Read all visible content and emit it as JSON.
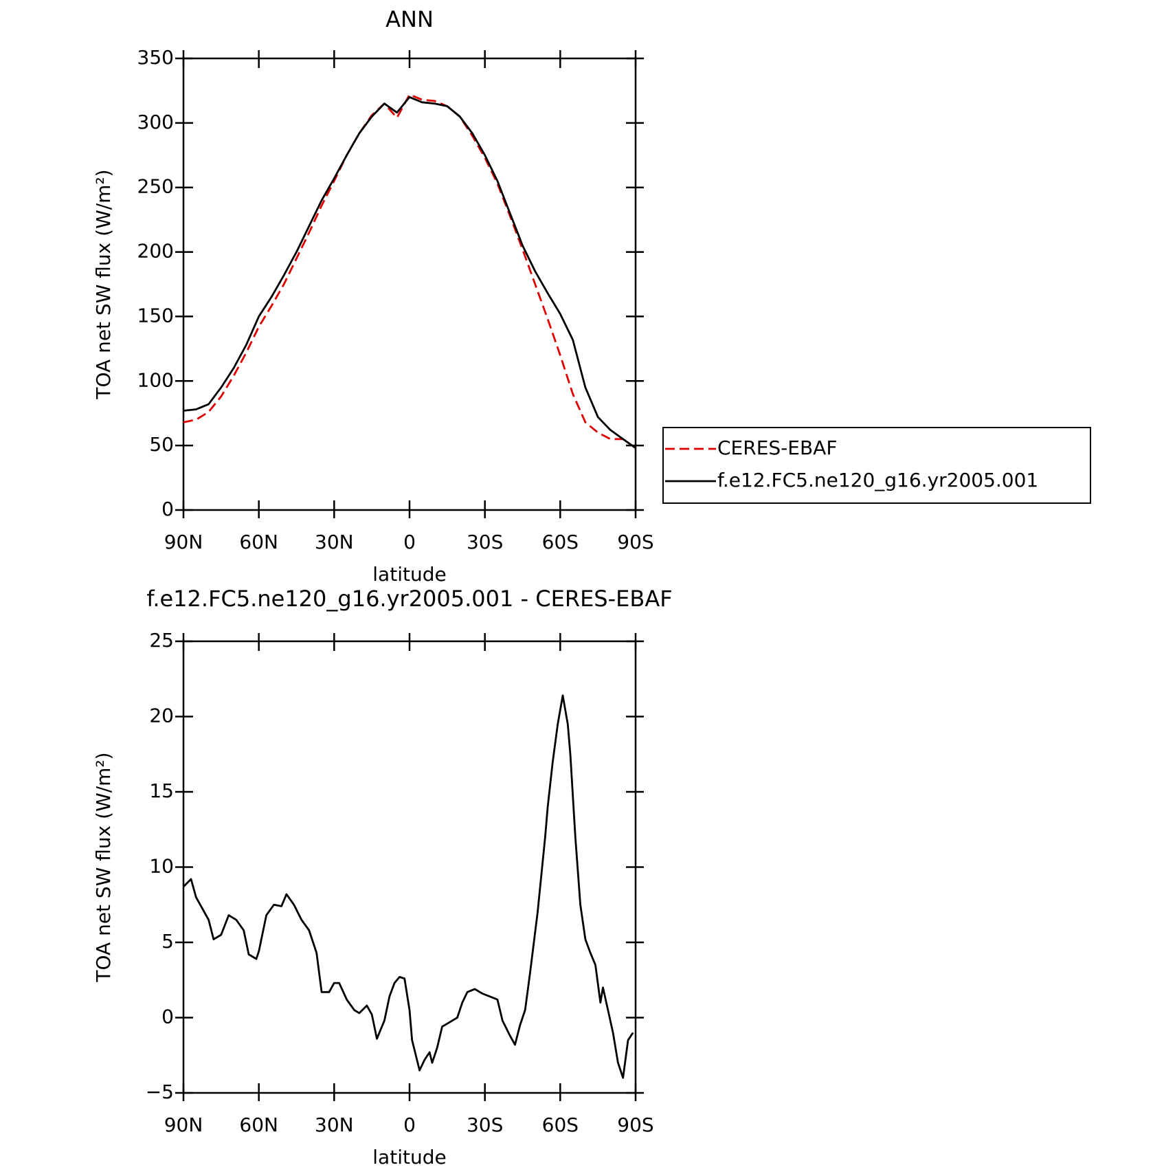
{
  "chart_data": [
    {
      "type": "line",
      "title": "ANN",
      "xlabel": "latitude",
      "ylabel": "TOA net SW flux (W/m²)",
      "x": [
        90,
        85,
        80,
        75,
        70,
        65,
        60,
        55,
        50,
        45,
        40,
        35,
        30,
        25,
        20,
        15,
        10,
        5,
        0,
        -5,
        -10,
        -15,
        -20,
        -25,
        -30,
        -35,
        -40,
        -45,
        -50,
        -55,
        -60,
        -65,
        -70,
        -75,
        -80,
        -85,
        -90
      ],
      "series": [
        {
          "name": "CERES-EBAF",
          "color": "#e00000",
          "dash": true,
          "values": [
            68,
            70,
            76,
            88,
            104,
            122,
            142,
            158,
            175,
            195,
            215,
            236,
            255,
            275,
            292,
            306,
            315,
            304,
            322,
            318,
            317,
            313,
            305,
            290,
            273,
            253,
            228,
            202,
            175,
            148,
            120,
            90,
            68,
            60,
            55,
            55,
            48
          ]
        },
        {
          "name": "f.e12.FC5.ne120_g16.yr2005.001",
          "color": "#000000",
          "dash": false,
          "values": [
            77,
            78,
            82,
            95,
            110,
            128,
            150,
            165,
            182,
            200,
            220,
            240,
            257,
            275,
            292,
            305,
            315,
            308,
            320,
            316,
            315,
            313,
            305,
            292,
            275,
            255,
            230,
            205,
            185,
            168,
            152,
            132,
            95,
            72,
            62,
            55,
            48
          ]
        }
      ],
      "xlim": [
        90,
        -90
      ],
      "xticks": [
        {
          "value": 90,
          "label": "90N"
        },
        {
          "value": 60,
          "label": "60N"
        },
        {
          "value": 30,
          "label": "30N"
        },
        0,
        {
          "value": -30,
          "label": "30S"
        },
        {
          "value": -60,
          "label": "60S"
        },
        {
          "value": -90,
          "label": "90S"
        }
      ],
      "ylim": [
        0,
        350
      ],
      "yticks": [
        0,
        50,
        100,
        150,
        200,
        250,
        300,
        350
      ],
      "legend": "right"
    },
    {
      "type": "line",
      "title": "f.e12.FC5.ne120_g16.yr2005.001 - CERES-EBAF",
      "xlabel": "latitude",
      "ylabel": "TOA net SW flux (W/m²)",
      "x": [
        90,
        87,
        85,
        80,
        78,
        75,
        72,
        69,
        66,
        64,
        61,
        60,
        57,
        54,
        51,
        49,
        46,
        43,
        40,
        37,
        35,
        32,
        30,
        28,
        25,
        22,
        20,
        17,
        15,
        13,
        10,
        8,
        6,
        4,
        2,
        0,
        -1,
        -4,
        -6,
        -8,
        -9,
        -11,
        -13,
        -15,
        -17,
        -19,
        -21,
        -23,
        -26,
        -29,
        -32,
        -35,
        -37,
        -40,
        -42,
        -44,
        -46,
        -48,
        -51,
        -54,
        -55,
        -57,
        -59,
        -61,
        -63,
        -64,
        -66,
        -68,
        -70,
        -72,
        -74,
        -76,
        -77,
        -79,
        -81,
        -83,
        -85,
        -87,
        -89
      ],
      "series": [
        {
          "name": "f.e12.FC5.ne120_g16.yr2005.001 - CERES-EBAF",
          "color": "#000000",
          "dash": false,
          "values": [
            8.7,
            9.2,
            8,
            6.5,
            5.2,
            5.5,
            6.8,
            6.5,
            5.8,
            4.2,
            3.9,
            4.4,
            6.8,
            7.5,
            7.4,
            8.2,
            7.5,
            6.5,
            5.8,
            4.3,
            1.7,
            1.7,
            2.3,
            2.3,
            1.2,
            0.5,
            0.3,
            0.8,
            0.2,
            -1.4,
            -0.2,
            1.4,
            2.3,
            2.7,
            2.6,
            0.5,
            -1.5,
            -3.5,
            -2.8,
            -2.3,
            -3,
            -2,
            -0.6,
            -0.4,
            -0.2,
            0,
            1,
            1.7,
            1.9,
            1.6,
            1.4,
            1.2,
            -0.2,
            -1.2,
            -1.8,
            -0.5,
            0.5,
            3,
            7,
            12,
            14,
            17,
            19.5,
            21.4,
            19.5,
            17.5,
            12,
            7.5,
            5.2,
            4.3,
            3.5,
            1,
            2,
            0.5,
            -1,
            -3,
            -4,
            -1.5,
            -1
          ]
        }
      ],
      "xlim": [
        90,
        -90
      ],
      "xticks": [
        {
          "value": 90,
          "label": "90N"
        },
        {
          "value": 60,
          "label": "60N"
        },
        {
          "value": 30,
          "label": "30N"
        },
        0,
        {
          "value": -30,
          "label": "30S"
        },
        {
          "value": -60,
          "label": "60S"
        },
        {
          "value": -90,
          "label": "90S"
        }
      ],
      "ylim": [
        -5,
        25
      ],
      "yticks": [
        {
          "value": -5,
          "label": "−5"
        },
        0,
        5,
        10,
        15,
        20,
        25
      ]
    }
  ]
}
